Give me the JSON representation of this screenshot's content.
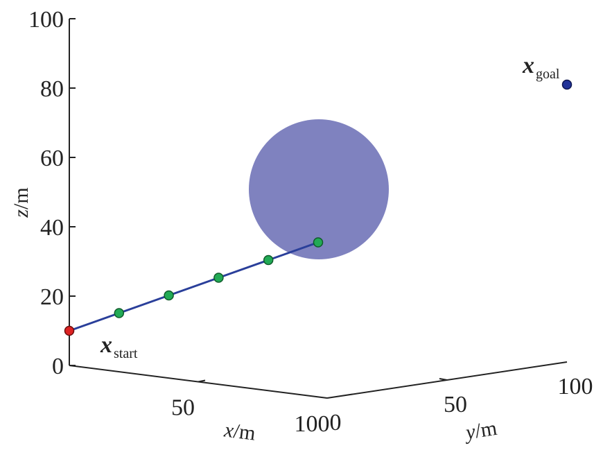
{
  "chart_data": {
    "type": "scatter",
    "title": "",
    "axes": {
      "x": {
        "label_var": "x",
        "label_unit": "/m",
        "range": [
          0,
          100
        ],
        "ticks": [
          {
            "value": 50,
            "label": "50"
          },
          {
            "value": 100,
            "label": "100"
          }
        ]
      },
      "y": {
        "label_var": "y",
        "label_unit": "/m",
        "range": [
          0,
          100
        ],
        "ticks": [
          {
            "value": 0,
            "label": "0"
          },
          {
            "value": 50,
            "label": "50"
          },
          {
            "value": 100,
            "label": "100"
          }
        ]
      },
      "z": {
        "label_var": "z",
        "label_unit": "/m",
        "range": [
          0,
          100
        ],
        "ticks": [
          {
            "value": 0,
            "label": "0"
          },
          {
            "value": 20,
            "label": "20"
          },
          {
            "value": 40,
            "label": "40"
          },
          {
            "value": 60,
            "label": "60"
          },
          {
            "value": 80,
            "label": "80"
          },
          {
            "value": 100,
            "label": "100"
          }
        ]
      }
    },
    "path": {
      "points": [
        {
          "x": 0,
          "y": 0,
          "z": 10,
          "kind": "start"
        },
        {
          "x": 10,
          "y": 10,
          "z": 15,
          "kind": "waypoint"
        },
        {
          "x": 20,
          "y": 20,
          "z": 20,
          "kind": "waypoint"
        },
        {
          "x": 30,
          "y": 30,
          "z": 25,
          "kind": "waypoint"
        },
        {
          "x": 40,
          "y": 40,
          "z": 30,
          "kind": "waypoint"
        },
        {
          "x": 50,
          "y": 50,
          "z": 35,
          "kind": "waypoint"
        }
      ]
    },
    "goal": {
      "x": 100,
      "y": 100,
      "z": 80
    },
    "obstacle": {
      "shape": "sphere",
      "center": {
        "x": 70,
        "y": 70,
        "z": 50
      }
    },
    "annotations": {
      "start": {
        "main": "x",
        "sub": "start"
      },
      "goal": {
        "main": "x",
        "sub": "goal"
      }
    },
    "colors": {
      "axis": "#222222",
      "path_line": "#2a3f9a",
      "waypoint": "#22aa55",
      "waypoint_edge": "#0f5a2a",
      "start": "#dd2222",
      "start_edge": "#6a0d0d",
      "goal": "#223399",
      "goal_edge": "#0e1650",
      "obstacle": "#7f82bf"
    }
  }
}
